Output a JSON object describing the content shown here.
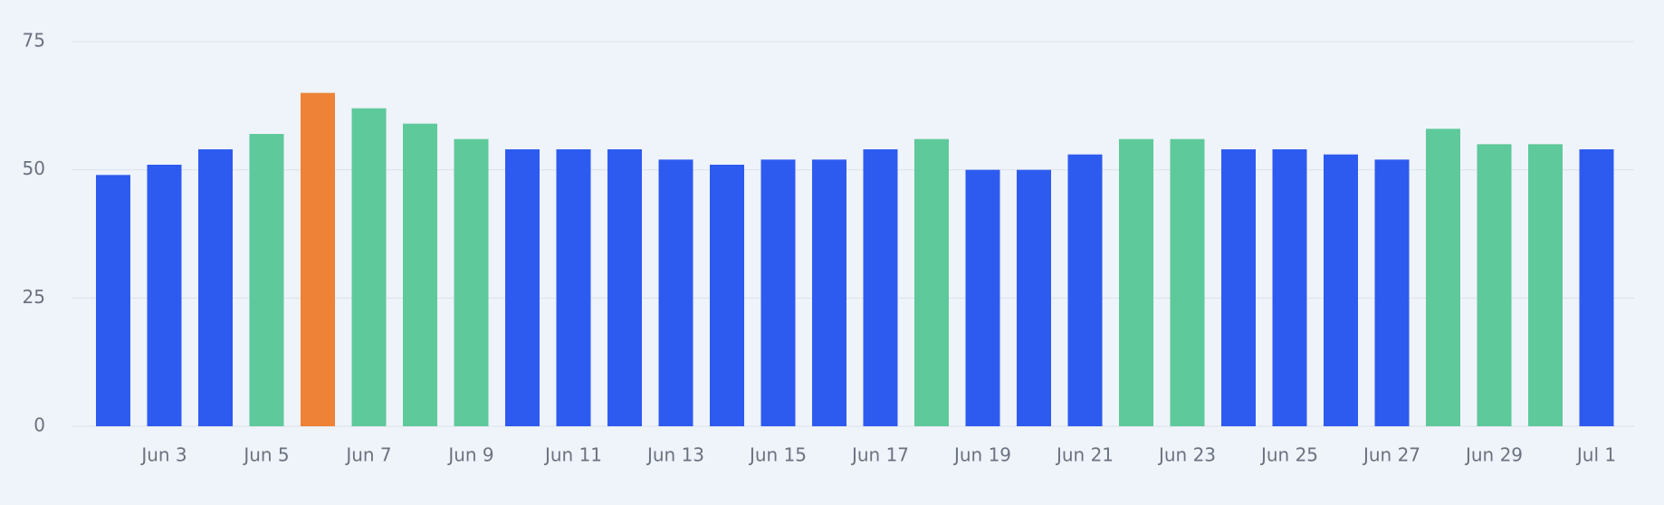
{
  "chart_data": {
    "type": "bar",
    "categories": [
      null,
      "Jun 3",
      null,
      "Jun 5",
      null,
      "Jun 7",
      null,
      "Jun 9",
      null,
      "Jun 11",
      null,
      "Jun 13",
      null,
      "Jun 15",
      null,
      "Jun 17",
      null,
      "Jun 19",
      null,
      "Jun 21",
      null,
      "Jun 23",
      null,
      "Jun 25",
      null,
      "Jun 27",
      null,
      "Jun 29",
      null,
      "Jul 1"
    ],
    "values": [
      49,
      51,
      54,
      57,
      65,
      62,
      59,
      56,
      54,
      54,
      54,
      52,
      51,
      52,
      52,
      54,
      56,
      50,
      50,
      53,
      56,
      56,
      54,
      54,
      53,
      52,
      58,
      55,
      55,
      54
    ],
    "colors": [
      "#2d5bf0",
      "#2d5bf0",
      "#2d5bf0",
      "#5ec99a",
      "#ee8236",
      "#5ec99a",
      "#5ec99a",
      "#5ec99a",
      "#2d5bf0",
      "#2d5bf0",
      "#2d5bf0",
      "#2d5bf0",
      "#2d5bf0",
      "#2d5bf0",
      "#2d5bf0",
      "#2d5bf0",
      "#5ec99a",
      "#2d5bf0",
      "#2d5bf0",
      "#2d5bf0",
      "#5ec99a",
      "#5ec99a",
      "#2d5bf0",
      "#2d5bf0",
      "#2d5bf0",
      "#2d5bf0",
      "#5ec99a",
      "#5ec99a",
      "#5ec99a",
      "#2d5bf0"
    ],
    "ylim": [
      0,
      75
    ],
    "yticks": [
      0,
      25,
      50,
      75
    ],
    "grid": true
  }
}
